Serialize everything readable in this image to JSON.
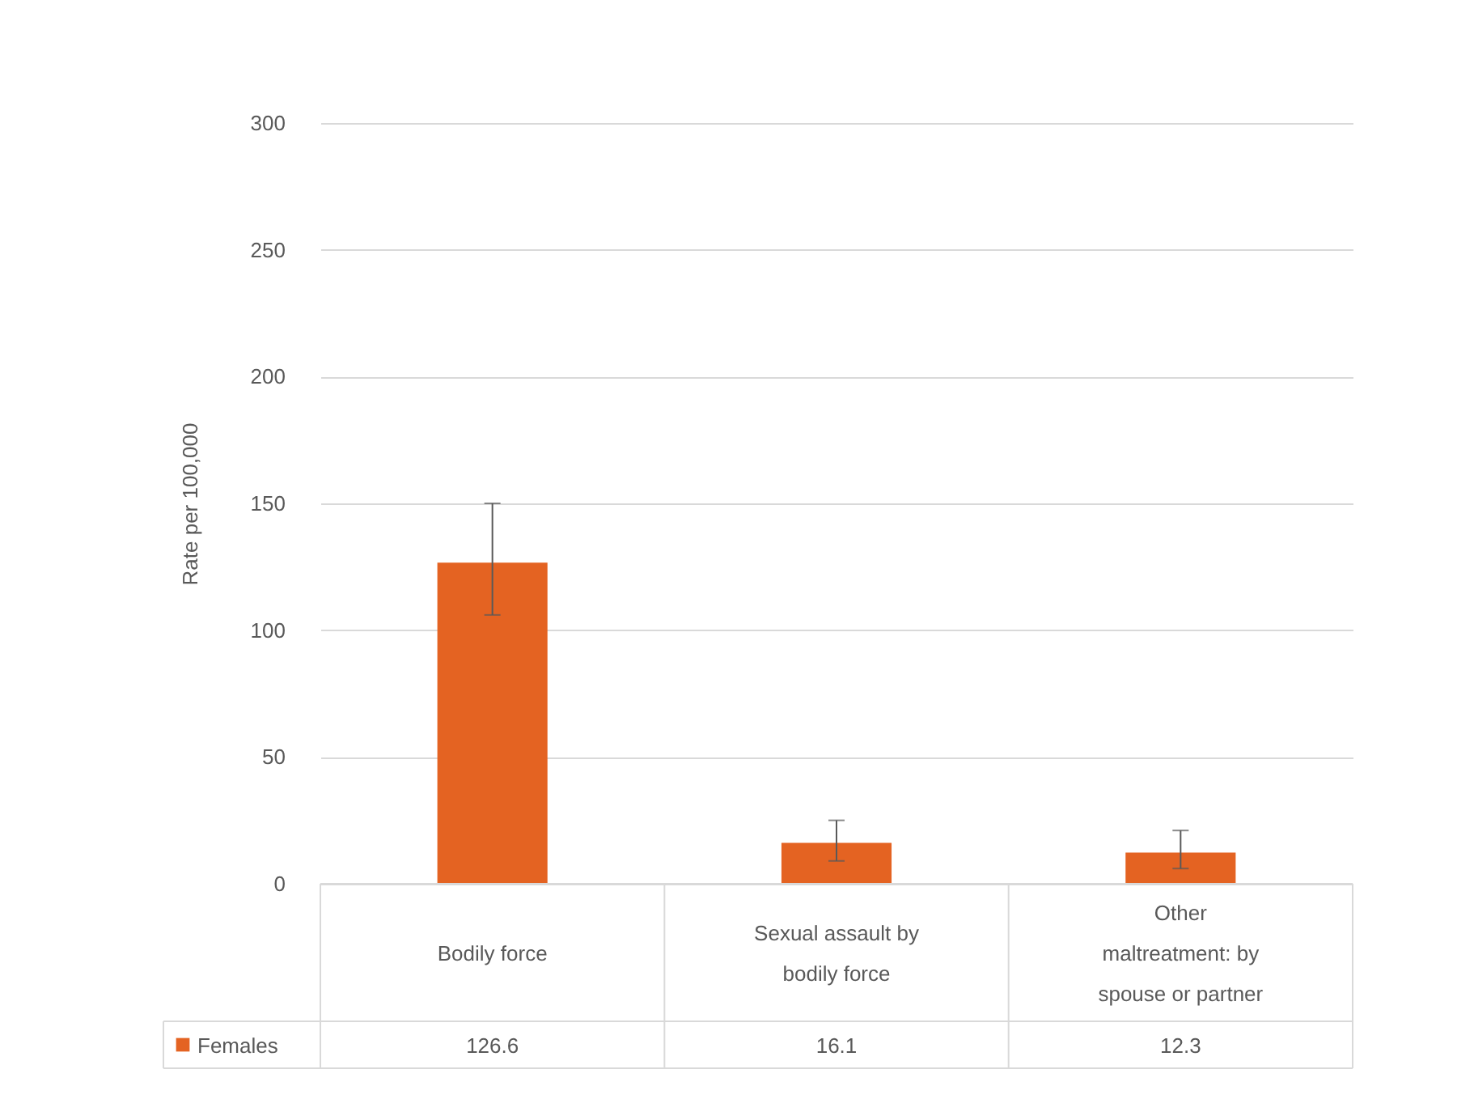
{
  "chart_data": {
    "type": "bar",
    "ylabel": "Rate per 100,000",
    "categories": [
      "Bodily force",
      "Sexual assault by bodily force",
      "Other maltreatment: by spouse or partner"
    ],
    "series": [
      {
        "name": "Females",
        "color": "#e46322",
        "values": [
          126.6,
          16.1,
          12.3
        ],
        "errors": [
          [
            106,
            150
          ],
          [
            9,
            25
          ],
          [
            6,
            21
          ]
        ]
      }
    ],
    "ylim": [
      0,
      300
    ],
    "yticks": [
      0,
      50,
      100,
      150,
      200,
      250,
      300
    ],
    "grid": "y",
    "legend": "bottom left",
    "data_labels": true
  }
}
